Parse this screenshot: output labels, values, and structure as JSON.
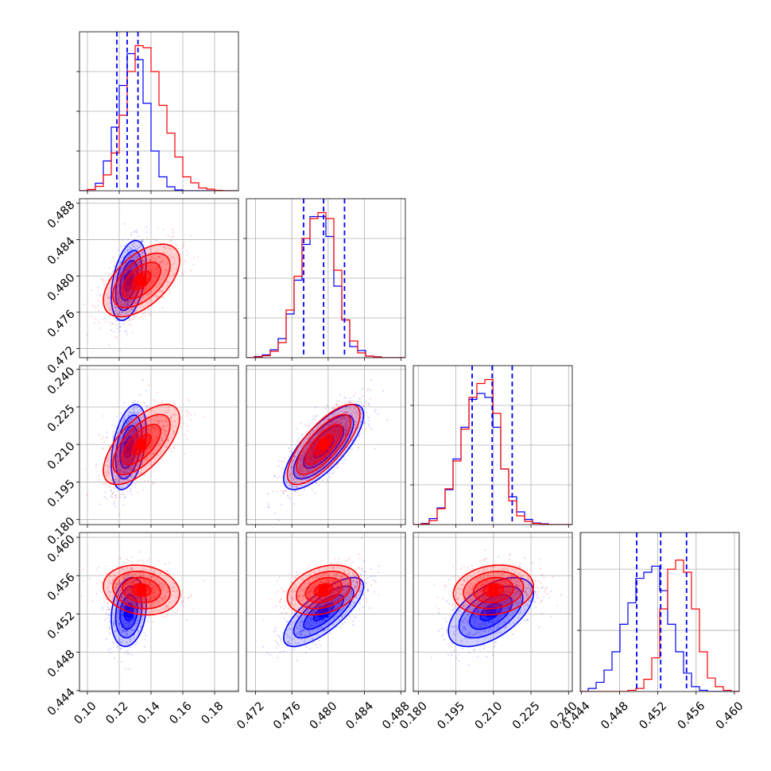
{
  "chart_data": {
    "type": "corner",
    "grid": true,
    "colors": {
      "series_a": "#0000ff",
      "series_b": "#ff0000",
      "quantile_lines": "#0000ff"
    },
    "params": [
      {
        "range": [
          0.095,
          0.195
        ],
        "ticks": [
          0.1,
          0.12,
          0.14,
          0.16,
          0.18
        ],
        "tick_labels": [
          "0.10",
          "0.12",
          "0.14",
          "0.16",
          "0.18"
        ],
        "quantiles": [
          0.1185,
          0.125,
          0.1318
        ],
        "hist_density_ticks": [
          1,
          2,
          3
        ],
        "hist_ylim": [
          0,
          4.0
        ],
        "hist_bins": 20,
        "hist_blue": [
          0,
          0.03,
          0.19,
          0.75,
          1.6,
          2.65,
          3.45,
          3.3,
          2.2,
          1.0,
          0.35,
          0.1,
          0.02,
          0,
          0,
          0,
          0,
          0,
          0,
          0
        ],
        "hist_red": [
          0,
          0.03,
          0.11,
          0.4,
          0.95,
          1.9,
          3.0,
          3.65,
          3.6,
          3.0,
          2.15,
          1.45,
          0.85,
          0.35,
          0.2,
          0.07,
          0.04,
          0.01,
          0,
          0
        ]
      },
      {
        "range": [
          0.471,
          0.4885
        ],
        "ticks": [
          0.472,
          0.476,
          0.48,
          0.484,
          0.488
        ],
        "tick_labels": [
          "0.472",
          "0.476",
          "0.480",
          "0.484",
          "0.488"
        ],
        "quantiles": [
          0.4773,
          0.4795,
          0.4818
        ],
        "hist_density_ticks": [
          1,
          2,
          3
        ],
        "hist_ylim": [
          0,
          4.0
        ],
        "hist_bins": 20,
        "hist_blue": [
          0,
          0.03,
          0.07,
          0.2,
          0.48,
          1.1,
          1.95,
          2.85,
          3.55,
          3.55,
          3.05,
          1.8,
          0.95,
          0.28,
          0.18,
          0.04,
          0.02,
          0,
          0,
          0
        ],
        "hist_red": [
          0,
          0.02,
          0.05,
          0.16,
          0.38,
          1.2,
          2.05,
          3.0,
          3.5,
          3.65,
          3.5,
          2.2,
          0.95,
          0.42,
          0.12,
          0.04,
          0.02,
          0,
          0,
          0
        ]
      },
      {
        "range": [
          0.178,
          0.2415
        ],
        "ticks": [
          0.18,
          0.195,
          0.21,
          0.225,
          0.24
        ],
        "tick_labels": [
          "0.180",
          "0.195",
          "0.210",
          "0.225",
          "0.240"
        ],
        "quantiles": [
          0.2015,
          0.2095,
          0.2175
        ],
        "hist_density_ticks": [
          1,
          2,
          3
        ],
        "hist_ylim": [
          0,
          4.0
        ],
        "hist_bins": 20,
        "hist_blue": [
          0,
          0.03,
          0.15,
          0.42,
          0.88,
          1.65,
          2.45,
          3.15,
          3.3,
          3.2,
          2.45,
          1.4,
          0.7,
          0.32,
          0.13,
          0.04,
          0.02,
          0,
          0,
          0
        ],
        "hist_red": [
          0,
          0.02,
          0.1,
          0.4,
          0.9,
          1.6,
          2.4,
          3.2,
          3.55,
          3.65,
          2.8,
          1.4,
          0.6,
          0.22,
          0.08,
          0.03,
          0.01,
          0,
          0,
          0
        ]
      },
      {
        "range": [
          0.4439,
          0.4605
        ],
        "ticks": [
          0.444,
          0.448,
          0.452,
          0.456,
          0.46
        ],
        "tick_labels": [
          "0.444",
          "0.448",
          "0.452",
          "0.456",
          "0.460"
        ],
        "quantiles": [
          0.4498,
          0.4523,
          0.455
        ],
        "hist_density_ticks": [
          1,
          2
        ],
        "hist_ylim": [
          0,
          2.6
        ],
        "hist_bins": 20,
        "hist_blue": [
          0,
          0.05,
          0.15,
          0.35,
          0.65,
          1.1,
          1.45,
          1.85,
          1.95,
          2.05,
          1.65,
          1.1,
          0.65,
          0.3,
          0.08,
          0.02,
          0,
          0,
          0,
          0
        ],
        "hist_red": [
          0,
          0,
          0,
          0,
          0,
          0,
          0.02,
          0.05,
          0.2,
          0.55,
          1.35,
          2.0,
          2.15,
          1.95,
          1.35,
          0.65,
          0.22,
          0.08,
          0.02,
          0
        ]
      }
    ],
    "populations": {
      "blue": {
        "mean": [
          0.126,
          0.4795,
          0.209,
          0.4522
        ],
        "sd": [
          0.0055,
          0.0022,
          0.0085,
          0.0018
        ],
        "corr": [
          [
            1,
            0.4,
            0.4,
            0.2
          ],
          [
            0.4,
            1,
            0.75,
            0.75
          ],
          [
            0.4,
            0.75,
            1,
            0.55
          ],
          [
            0.2,
            0.75,
            0.55,
            1
          ]
        ]
      },
      "red": {
        "mean": [
          0.134,
          0.4795,
          0.21,
          0.4545
        ],
        "sd": [
          0.012,
          0.002,
          0.008,
          0.0013
        ],
        "corr": [
          [
            1,
            0.55,
            0.65,
            -0.15
          ],
          [
            0.55,
            1,
            0.75,
            0.3
          ],
          [
            0.65,
            0.75,
            1,
            0.15
          ],
          [
            -0.15,
            0.3,
            0.15,
            1
          ]
        ]
      }
    }
  }
}
